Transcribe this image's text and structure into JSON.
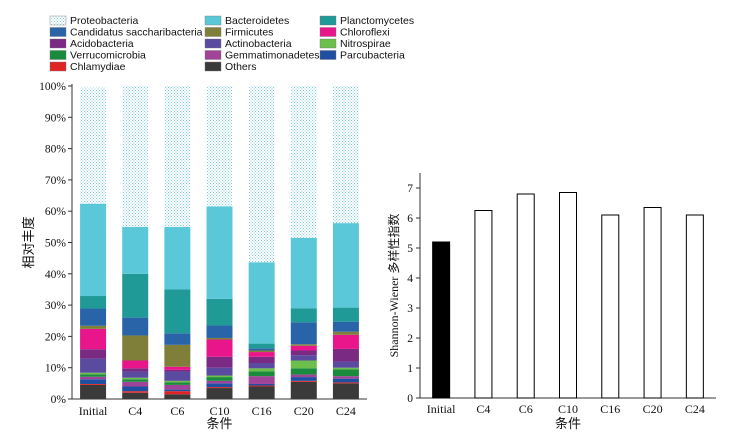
{
  "figure": {
    "left_chart": {
      "type": "stacked-bar",
      "ylabel": "相对丰度",
      "xlabel": "条件",
      "categories": [
        "Initial",
        "C4",
        "C6",
        "C10",
        "C16",
        "C20",
        "C24"
      ],
      "yticks": [
        "0%",
        "10%",
        "20%",
        "30%",
        "40%",
        "50%",
        "60%",
        "70%",
        "80%",
        "90%",
        "100%"
      ],
      "ylim": [
        0,
        100
      ],
      "legend": [
        {
          "name": "Proteobacteria",
          "color": "#ffffff",
          "pattern": "dots"
        },
        {
          "name": "Bacteroidetes",
          "color": "#5bc8d9"
        },
        {
          "name": "Planctomycetes",
          "color": "#1f9a96"
        },
        {
          "name": "Candidatus saccharibacteria",
          "color": "#2a64a8"
        },
        {
          "name": "Firmicutes",
          "color": "#7f7f3a"
        },
        {
          "name": "Chloroflexi",
          "color": "#e8168a"
        },
        {
          "name": "Acidobacteria",
          "color": "#7a2a82"
        },
        {
          "name": "Actinobacteria",
          "color": "#5a4aa0"
        },
        {
          "name": "Nitrospirae",
          "color": "#6dbf4c"
        },
        {
          "name": "Verrucomicrobia",
          "color": "#1a8a3c"
        },
        {
          "name": "Gemmatimonadetes",
          "color": "#a0449a"
        },
        {
          "name": "Parcubacteria",
          "color": "#1f4fa0"
        },
        {
          "name": "Chlamydiae",
          "color": "#e02424"
        },
        {
          "name": "Others",
          "color": "#3a3a3a"
        }
      ]
    }
  },
  "chart_data": [
    {
      "type": "bar",
      "stacked": true,
      "title": "",
      "xlabel": "条件",
      "ylabel": "相对丰度",
      "ylim": [
        0,
        100
      ],
      "unit": "%",
      "categories": [
        "Initial",
        "C4",
        "C6",
        "C10",
        "C16",
        "C20",
        "C24"
      ],
      "series": [
        {
          "name": "Others",
          "values": [
            4.5,
            2.0,
            1.5,
            3.5,
            4.0,
            5.5,
            5.0
          ]
        },
        {
          "name": "Chlamydiae",
          "values": [
            0.3,
            0.5,
            1.0,
            0.3,
            0.3,
            0.3,
            0.3
          ]
        },
        {
          "name": "Parcubacteria",
          "values": [
            1.5,
            1.5,
            0.5,
            1.2,
            0.5,
            1.2,
            1.2
          ]
        },
        {
          "name": "Gemmatimonadetes",
          "values": [
            0.8,
            1.5,
            1.5,
            0.8,
            2.5,
            0.8,
            0.8
          ]
        },
        {
          "name": "Verrucomicrobia",
          "values": [
            0.8,
            0.8,
            0.8,
            1.2,
            1.5,
            2.0,
            2.2
          ]
        },
        {
          "name": "Nitrospirae",
          "values": [
            0.5,
            0.5,
            0.5,
            0.5,
            1.0,
            2.5,
            0.5
          ]
        },
        {
          "name": "Actinobacteria",
          "values": [
            4.5,
            2.0,
            3.0,
            2.5,
            1.7,
            1.7,
            2.0
          ]
        },
        {
          "name": "Acidobacteria",
          "values": [
            3.0,
            1.0,
            0.5,
            3.5,
            2.0,
            1.5,
            4.0
          ]
        },
        {
          "name": "Chloroflexi",
          "values": [
            6.5,
            2.5,
            1.0,
            5.5,
            1.5,
            1.5,
            4.5
          ]
        },
        {
          "name": "Firmicutes",
          "values": [
            1.0,
            8.0,
            7.0,
            0.5,
            0.5,
            0.5,
            1.0
          ]
        },
        {
          "name": "Candidatus saccharibacteria",
          "values": [
            5.5,
            5.7,
            3.7,
            4.0,
            0.7,
            7.0,
            3.2
          ]
        },
        {
          "name": "Planctomycetes",
          "values": [
            4.0,
            14.0,
            14.0,
            8.5,
            1.5,
            4.5,
            4.5
          ]
        },
        {
          "name": "Bacteroidetes",
          "values": [
            29.5,
            15.0,
            20.0,
            29.5,
            26.0,
            22.5,
            27.0
          ]
        },
        {
          "name": "Proteobacteria",
          "values": [
            37.1,
            45.0,
            45.0,
            38.5,
            56.3,
            48.5,
            43.8
          ]
        }
      ]
    },
    {
      "type": "bar",
      "title": "",
      "xlabel": "条件",
      "ylabel": "Shannon-Wiener 多样性指数",
      "ylim": [
        0,
        7.5
      ],
      "yticks": [
        "0",
        "1",
        "2",
        "3",
        "4",
        "5",
        "6",
        "7"
      ],
      "categories": [
        "Initial",
        "C4",
        "C6",
        "C10",
        "C16",
        "C20",
        "C24"
      ],
      "values": [
        5.2,
        6.25,
        6.8,
        6.85,
        6.1,
        6.35,
        6.1
      ]
    }
  ]
}
